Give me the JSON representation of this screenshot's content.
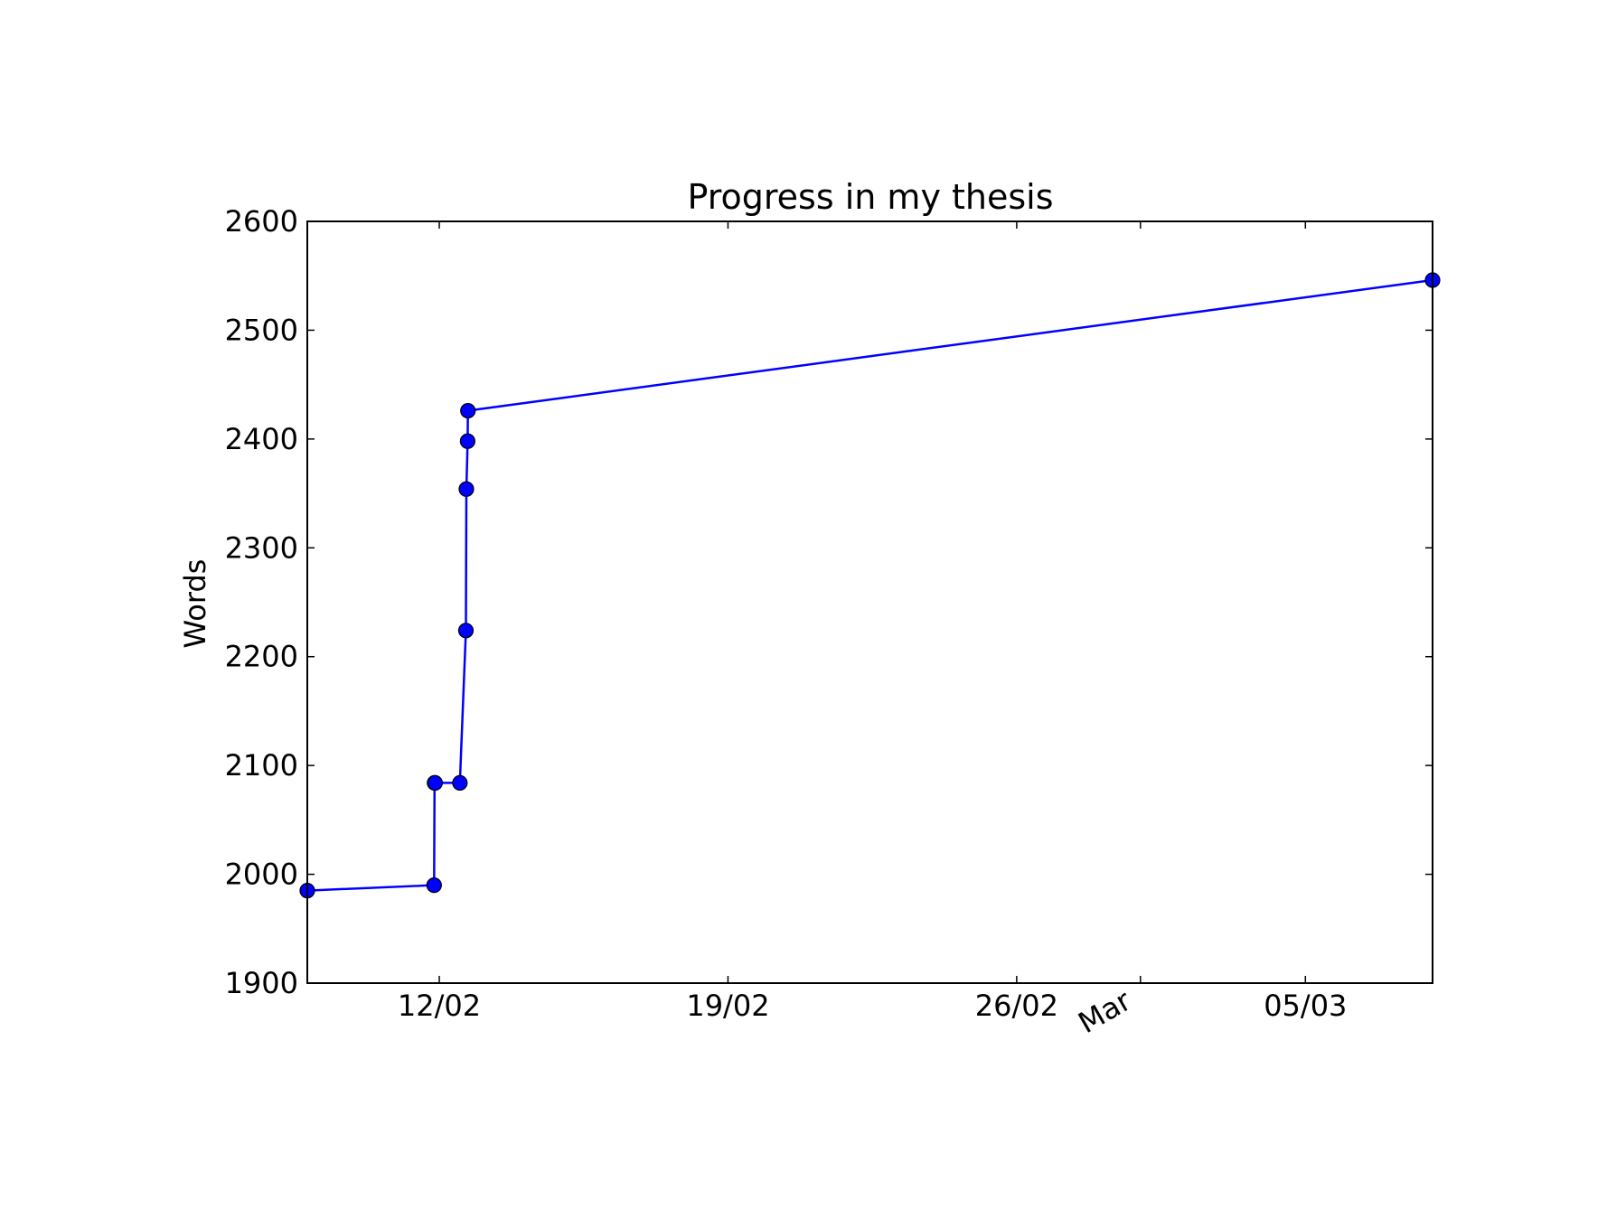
{
  "chart_data": {
    "type": "line",
    "title": "Progress in my thesis",
    "xlabel": "",
    "ylabel": "Words",
    "x_axis_type": "date",
    "xlim": [
      "2015-02-08T19:12",
      "2015-03-08T02:00"
    ],
    "ylim": [
      1900,
      2600
    ],
    "yticks": [
      1900,
      2000,
      2100,
      2200,
      2300,
      2400,
      2500,
      2600
    ],
    "xticks": [
      {
        "date": "2015-02-12",
        "label": "12/02"
      },
      {
        "date": "2015-02-19",
        "label": "19/02"
      },
      {
        "date": "2015-02-26",
        "label": "26/02"
      },
      {
        "date": "2015-03-01",
        "label": "Mar",
        "rotated": true
      },
      {
        "date": "2015-03-05",
        "label": "05/03"
      }
    ],
    "grid": false,
    "series": [
      {
        "color": "#0000ff",
        "marker": "circle",
        "points": [
          {
            "x": "2015-02-08T19:12",
            "y": 1985
          },
          {
            "x": "2015-02-11T21:00",
            "y": 1990
          },
          {
            "x": "2015-02-11T21:15",
            "y": 2084
          },
          {
            "x": "2015-02-11T21:35",
            "y": 2084
          },
          {
            "x": "2015-02-12T12:00",
            "y": 2084
          },
          {
            "x": "2015-02-12T15:30",
            "y": 2224
          },
          {
            "x": "2015-02-12T15:45",
            "y": 2354
          },
          {
            "x": "2015-02-12T16:30",
            "y": 2398
          },
          {
            "x": "2015-02-12T16:40",
            "y": 2426
          },
          {
            "x": "2015-03-08T02:00",
            "y": 2546
          }
        ]
      }
    ]
  }
}
